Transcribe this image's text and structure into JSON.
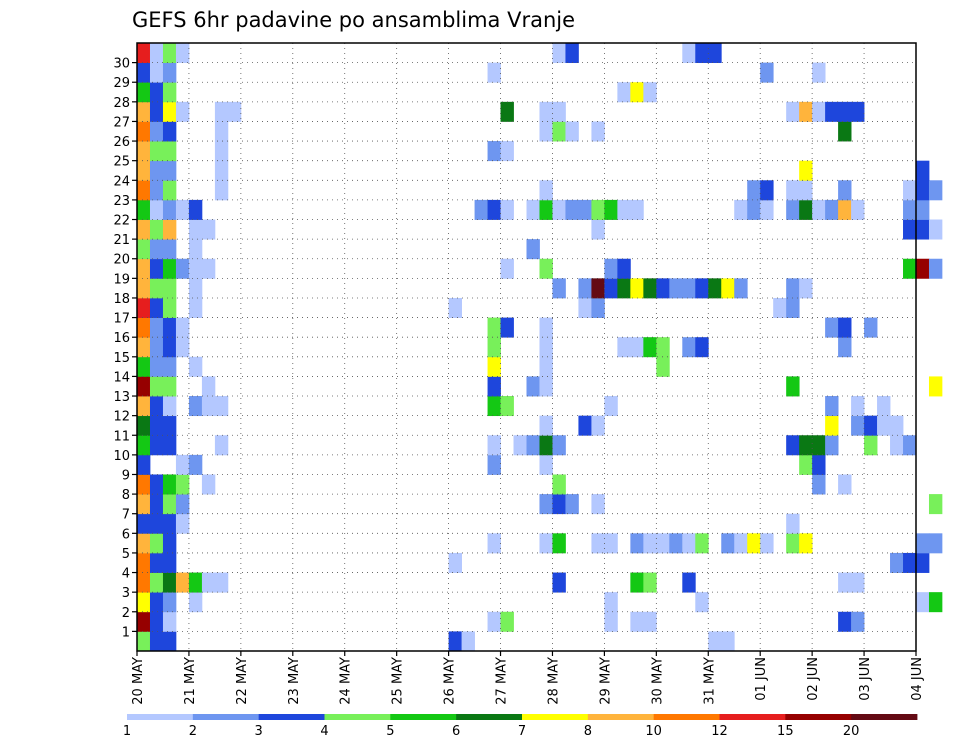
{
  "chart_data": {
    "type": "heatmap",
    "title": "GEFS 6hr padavine po ansamblima Vranje",
    "x_labels": [
      "20 MAY",
      "21 MAY",
      "22 MAY",
      "23 MAY",
      "24 MAY",
      "25 MAY",
      "26 MAY",
      "27 MAY",
      "28 MAY",
      "29 MAY",
      "30 MAY",
      "31 MAY",
      "01 JUN",
      "02 JUN",
      "03 JUN",
      "04 JUN"
    ],
    "y_labels": [
      "1",
      "2",
      "3",
      "4",
      "5",
      "6",
      "7",
      "8",
      "9",
      "10",
      "11",
      "12",
      "13",
      "14",
      "15",
      "16",
      "17",
      "18",
      "19",
      "20",
      "21",
      "22",
      "23",
      "24",
      "25",
      "26",
      "27",
      "28",
      "29",
      "30"
    ],
    "grid": true,
    "legend_position": "bottom",
    "legend_thresholds": [
      "1",
      "2",
      "3",
      "4",
      "5",
      "6",
      "7",
      "8",
      "10",
      "12",
      "15",
      "20"
    ],
    "legend_colors": [
      "#b4c8ff",
      "#6e96f0",
      "#1e46dc",
      "#78f05a",
      "#14c814",
      "#0a7814",
      "#ffff00",
      "#ffb43c",
      "#ff7800",
      "#e61e1e",
      "#960000",
      "#640a14"
    ],
    "cells": {
      "30": [
        [
          0,
          10
        ],
        [
          1,
          1
        ],
        [
          2,
          4
        ],
        [
          3,
          1
        ],
        [
          32,
          1
        ],
        [
          33,
          3
        ],
        [
          42,
          1
        ],
        [
          43,
          3
        ],
        [
          44,
          3
        ]
      ],
      "29": [
        [
          0,
          3
        ],
        [
          1,
          1
        ],
        [
          2,
          2
        ],
        [
          27,
          1
        ],
        [
          48,
          2
        ],
        [
          52,
          1
        ]
      ],
      "28": [
        [
          0,
          5
        ],
        [
          1,
          3
        ],
        [
          2,
          4
        ],
        [
          37,
          1
        ],
        [
          38,
          7
        ],
        [
          39,
          1
        ]
      ],
      "27": [
        [
          0,
          8
        ],
        [
          1,
          3
        ],
        [
          2,
          7
        ],
        [
          3,
          1
        ],
        [
          6,
          1
        ],
        [
          7,
          1
        ],
        [
          28,
          6
        ],
        [
          31,
          1
        ],
        [
          32,
          1
        ],
        [
          50,
          1
        ],
        [
          51,
          8
        ],
        [
          52,
          1
        ],
        [
          53,
          3
        ],
        [
          54,
          3
        ],
        [
          55,
          3
        ]
      ],
      "26": [
        [
          0,
          9
        ],
        [
          1,
          2
        ],
        [
          2,
          3
        ],
        [
          6,
          1
        ],
        [
          31,
          1
        ],
        [
          32,
          4
        ],
        [
          33,
          1
        ],
        [
          35,
          1
        ],
        [
          54,
          6
        ]
      ],
      "25": [
        [
          0,
          8
        ],
        [
          1,
          4
        ],
        [
          2,
          4
        ],
        [
          6,
          1
        ],
        [
          27,
          2
        ],
        [
          28,
          1
        ]
      ],
      "24": [
        [
          0,
          8
        ],
        [
          1,
          2
        ],
        [
          2,
          2
        ],
        [
          6,
          1
        ],
        [
          51,
          7
        ],
        [
          60,
          3
        ]
      ],
      "23": [
        [
          0,
          9
        ],
        [
          1,
          2
        ],
        [
          2,
          4
        ],
        [
          6,
          1
        ],
        [
          31,
          1
        ],
        [
          47,
          2
        ],
        [
          48,
          3
        ],
        [
          50,
          1
        ],
        [
          51,
          1
        ],
        [
          54,
          2
        ],
        [
          59,
          1
        ],
        [
          60,
          3
        ],
        [
          61,
          2
        ]
      ],
      "22": [
        [
          0,
          5
        ],
        [
          1,
          1
        ],
        [
          2,
          2
        ],
        [
          3,
          1
        ],
        [
          4,
          3
        ],
        [
          26,
          2
        ],
        [
          27,
          3
        ],
        [
          28,
          1
        ],
        [
          30,
          1
        ],
        [
          31,
          5
        ],
        [
          32,
          1
        ],
        [
          33,
          2
        ],
        [
          34,
          2
        ],
        [
          35,
          4
        ],
        [
          36,
          5
        ],
        [
          37,
          1
        ],
        [
          38,
          1
        ],
        [
          46,
          1
        ],
        [
          47,
          2
        ],
        [
          48,
          1
        ],
        [
          50,
          2
        ],
        [
          51,
          6
        ],
        [
          52,
          1
        ],
        [
          53,
          2
        ],
        [
          54,
          8
        ],
        [
          55,
          1
        ],
        [
          59,
          2
        ],
        [
          60,
          2
        ]
      ],
      "21": [
        [
          0,
          8
        ],
        [
          1,
          4
        ],
        [
          2,
          8
        ],
        [
          4,
          1
        ],
        [
          5,
          1
        ],
        [
          35,
          1
        ],
        [
          59,
          3
        ],
        [
          60,
          3
        ],
        [
          61,
          1
        ]
      ],
      "20": [
        [
          0,
          4
        ],
        [
          1,
          2
        ],
        [
          2,
          2
        ],
        [
          4,
          1
        ],
        [
          30,
          2
        ]
      ],
      "19": [
        [
          0,
          8
        ],
        [
          1,
          3
        ],
        [
          2,
          5
        ],
        [
          3,
          2
        ],
        [
          4,
          1
        ],
        [
          5,
          1
        ],
        [
          28,
          1
        ],
        [
          31,
          4
        ],
        [
          36,
          2
        ],
        [
          37,
          3
        ],
        [
          59,
          5
        ],
        [
          60,
          11
        ],
        [
          61,
          2
        ]
      ],
      "18": [
        [
          0,
          8
        ],
        [
          1,
          4
        ],
        [
          2,
          4
        ],
        [
          4,
          1
        ],
        [
          32,
          2
        ],
        [
          34,
          2
        ],
        [
          35,
          12
        ],
        [
          36,
          3
        ],
        [
          37,
          6
        ],
        [
          38,
          7
        ],
        [
          39,
          6
        ],
        [
          40,
          3
        ],
        [
          41,
          2
        ],
        [
          42,
          2
        ],
        [
          43,
          3
        ],
        [
          44,
          6
        ],
        [
          45,
          7
        ],
        [
          46,
          2
        ],
        [
          50,
          2
        ],
        [
          51,
          1
        ]
      ],
      "17": [
        [
          0,
          10
        ],
        [
          1,
          3
        ],
        [
          2,
          4
        ],
        [
          4,
          1
        ],
        [
          24,
          1
        ],
        [
          34,
          1
        ],
        [
          35,
          2
        ],
        [
          49,
          1
        ],
        [
          50,
          2
        ]
      ],
      "16": [
        [
          0,
          9
        ],
        [
          1,
          2
        ],
        [
          2,
          3
        ],
        [
          3,
          1
        ],
        [
          27,
          4
        ],
        [
          28,
          3
        ],
        [
          31,
          1
        ],
        [
          53,
          2
        ],
        [
          54,
          3
        ],
        [
          56,
          2
        ]
      ],
      "15": [
        [
          0,
          8
        ],
        [
          1,
          2
        ],
        [
          2,
          3
        ],
        [
          3,
          1
        ],
        [
          27,
          4
        ],
        [
          31,
          1
        ],
        [
          37,
          1
        ],
        [
          38,
          1
        ],
        [
          39,
          5
        ],
        [
          40,
          4
        ],
        [
          42,
          2
        ],
        [
          43,
          3
        ],
        [
          54,
          2
        ]
      ],
      "14": [
        [
          0,
          5
        ],
        [
          1,
          2
        ],
        [
          2,
          2
        ],
        [
          4,
          1
        ],
        [
          27,
          7
        ],
        [
          31,
          1
        ],
        [
          40,
          4
        ]
      ],
      "13": [
        [
          0,
          11
        ],
        [
          1,
          4
        ],
        [
          2,
          4
        ],
        [
          5,
          1
        ],
        [
          27,
          3
        ],
        [
          30,
          2
        ],
        [
          31,
          1
        ],
        [
          50,
          5
        ],
        [
          61,
          7
        ]
      ],
      "12": [
        [
          0,
          8
        ],
        [
          1,
          3
        ],
        [
          2,
          1
        ],
        [
          4,
          2
        ],
        [
          5,
          1
        ],
        [
          6,
          1
        ],
        [
          27,
          5
        ],
        [
          28,
          4
        ],
        [
          36,
          1
        ],
        [
          53,
          2
        ],
        [
          55,
          1
        ],
        [
          57,
          1
        ]
      ],
      "11": [
        [
          0,
          6
        ],
        [
          1,
          3
        ],
        [
          2,
          3
        ],
        [
          31,
          1
        ],
        [
          34,
          3
        ],
        [
          35,
          1
        ],
        [
          53,
          7
        ],
        [
          55,
          2
        ],
        [
          56,
          3
        ],
        [
          57,
          1
        ],
        [
          58,
          1
        ]
      ],
      "10": [
        [
          0,
          5
        ],
        [
          1,
          3
        ],
        [
          2,
          3
        ],
        [
          6,
          1
        ],
        [
          27,
          1
        ],
        [
          29,
          1
        ],
        [
          30,
          2
        ],
        [
          31,
          6
        ],
        [
          32,
          2
        ],
        [
          50,
          3
        ],
        [
          51,
          6
        ],
        [
          52,
          6
        ],
        [
          53,
          2
        ],
        [
          56,
          4
        ],
        [
          58,
          1
        ],
        [
          59,
          2
        ]
      ],
      "9": [
        [
          0,
          3
        ],
        [
          3,
          1
        ],
        [
          4,
          2
        ],
        [
          27,
          2
        ],
        [
          31,
          1
        ],
        [
          51,
          4
        ],
        [
          52,
          3
        ]
      ],
      "8": [
        [
          0,
          9
        ],
        [
          1,
          3
        ],
        [
          2,
          5
        ],
        [
          3,
          4
        ],
        [
          5,
          1
        ],
        [
          32,
          4
        ],
        [
          52,
          2
        ],
        [
          54,
          1
        ]
      ],
      "7": [
        [
          0,
          8
        ],
        [
          1,
          3
        ],
        [
          2,
          4
        ],
        [
          3,
          2
        ],
        [
          31,
          2
        ],
        [
          32,
          3
        ],
        [
          33,
          2
        ],
        [
          35,
          1
        ],
        [
          61,
          4
        ]
      ],
      "6": [
        [
          0,
          3
        ],
        [
          1,
          3
        ],
        [
          2,
          3
        ],
        [
          3,
          1
        ],
        [
          50,
          1
        ]
      ],
      "5": [
        [
          0,
          8
        ],
        [
          1,
          4
        ],
        [
          2,
          3
        ],
        [
          27,
          1
        ],
        [
          31,
          1
        ],
        [
          32,
          5
        ],
        [
          35,
          1
        ],
        [
          36,
          1
        ],
        [
          38,
          2
        ],
        [
          39,
          1
        ],
        [
          40,
          1
        ],
        [
          41,
          2
        ],
        [
          42,
          1
        ],
        [
          43,
          4
        ],
        [
          45,
          2
        ],
        [
          46,
          1
        ],
        [
          47,
          7
        ],
        [
          48,
          1
        ],
        [
          50,
          4
        ],
        [
          51,
          7
        ],
        [
          60,
          2
        ],
        [
          61,
          2
        ]
      ],
      "4": [
        [
          0,
          9
        ],
        [
          1,
          3
        ],
        [
          2,
          3
        ],
        [
          24,
          1
        ],
        [
          58,
          2
        ],
        [
          59,
          3
        ],
        [
          60,
          3
        ]
      ],
      "3": [
        [
          0,
          9
        ],
        [
          1,
          4
        ],
        [
          2,
          6
        ],
        [
          3,
          8
        ],
        [
          4,
          5
        ],
        [
          5,
          1
        ],
        [
          6,
          1
        ],
        [
          32,
          3
        ],
        [
          38,
          5
        ],
        [
          39,
          4
        ],
        [
          42,
          3
        ],
        [
          54,
          1
        ],
        [
          55,
          1
        ]
      ],
      "2": [
        [
          0,
          7
        ],
        [
          1,
          3
        ],
        [
          2,
          2
        ],
        [
          4,
          1
        ],
        [
          36,
          1
        ],
        [
          43,
          1
        ],
        [
          60,
          1
        ],
        [
          61,
          5
        ]
      ],
      "1": [
        [
          0,
          11
        ],
        [
          1,
          3
        ],
        [
          2,
          1
        ],
        [
          27,
          1
        ],
        [
          28,
          4
        ],
        [
          36,
          1
        ],
        [
          38,
          1
        ],
        [
          39,
          1
        ],
        [
          54,
          3
        ],
        [
          55,
          2
        ]
      ],
      "0": [
        [
          0,
          4
        ],
        [
          1,
          3
        ],
        [
          2,
          3
        ],
        [
          24,
          3
        ],
        [
          25,
          1
        ],
        [
          44,
          1
        ],
        [
          45,
          1
        ]
      ]
    }
  }
}
